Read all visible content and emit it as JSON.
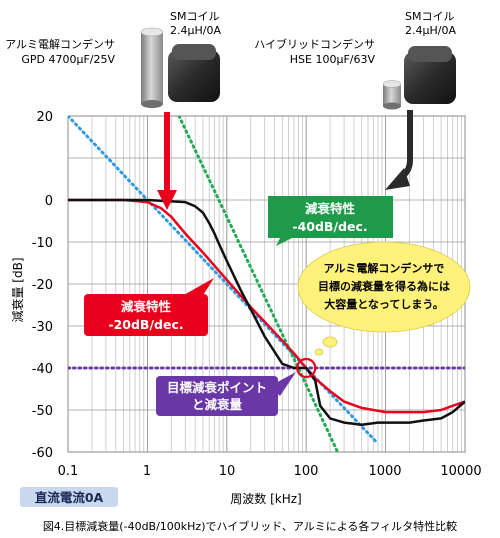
{
  "chart_data": {
    "type": "line",
    "xscale": "log",
    "xlim": [
      0.1,
      10000
    ],
    "ylim": [
      -60,
      20
    ],
    "xticks": [
      "0.1",
      "1",
      "10",
      "100",
      "1000",
      "10000"
    ],
    "yticks": [
      "20",
      "0",
      "-10",
      "-20",
      "-30",
      "-40",
      "-50",
      "-60"
    ],
    "xlabel": "周波数 [kHz]",
    "ylabel": "減衰量 [dB]",
    "grid": true,
    "series": [
      {
        "color": "#e8001c",
        "x": [
          0.1,
          0.5,
          1,
          1.5,
          2,
          3,
          5,
          10,
          20,
          30,
          50,
          70,
          100,
          130,
          200,
          300,
          500,
          700,
          1000,
          1500,
          2000,
          3000,
          5000,
          7000,
          10000
        ],
        "y": [
          0,
          0,
          -0.5,
          -2,
          -4,
          -8,
          -12.5,
          -19,
          -25.5,
          -29,
          -33.5,
          -36.5,
          -40,
          -42.5,
          -45.5,
          -48,
          -49.5,
          -50,
          -50.5,
          -50.5,
          -50.5,
          -50.5,
          -50,
          -49,
          -48
        ]
      },
      {
        "color": "#111111",
        "x": [
          0.1,
          1,
          3,
          4,
          5,
          6,
          7,
          8,
          10,
          15,
          20,
          30,
          50,
          70,
          100,
          130,
          150,
          200,
          300,
          500,
          800,
          1000,
          2000,
          3000,
          5000,
          7000,
          10000
        ],
        "y": [
          0,
          0,
          -0.5,
          -1.5,
          -3,
          -5.5,
          -8,
          -10.5,
          -14.5,
          -21.5,
          -26,
          -32.5,
          -39,
          -40,
          -40,
          -43,
          -49,
          -52,
          -53,
          -53.5,
          -53,
          -53,
          -53,
          -52.5,
          -52,
          -50.5,
          -48
        ]
      },
      {
        "color": "#3399dd",
        "style": "dotted",
        "x": [
          0.1,
          1,
          10,
          100,
          800
        ],
        "y": [
          20,
          0,
          -20,
          -40,
          -58
        ]
      },
      {
        "color": "#22aa55",
        "style": "dotted",
        "x": [
          2.5,
          10,
          100,
          350
        ],
        "y": [
          20,
          -4,
          -44,
          -66
        ]
      },
      {
        "color": "#6a38a6",
        "style": "dotted",
        "x": [
          0.1,
          10000
        ],
        "y": [
          -40,
          -40
        ]
      }
    ],
    "target_point": {
      "x": 100,
      "y": -40
    }
  },
  "components": {
    "left_label_line1": "アルミ電解コンデンサ",
    "left_label_line2": "GPD 4700μF/25V",
    "left_coil_line1": "SMコイル",
    "left_coil_line2": "2.4μH/0A",
    "right_label_line1": "ハイブリッドコンデンサ",
    "right_label_line2": "HSE 100μF/63V",
    "right_coil_line1": "SMコイル",
    "right_coil_line2": "2.4μH/0A"
  },
  "callouts": {
    "green_line1": "減衰特性",
    "green_line2": "-40dB/dec.",
    "red_line1": "減衰特性",
    "red_line2": "-20dB/dec.",
    "purple_line1": "目標減衰ポイント",
    "purple_line2": "と減衰量",
    "bubble_line1": "アルミ電解コンデンサで",
    "bubble_line2": "目標の減衰量を得る為には",
    "bubble_line3": "大容量となってしまう。"
  },
  "badge": "直流電流0A",
  "caption": "図4.目標減衰量(-40dB/100kHz)でハイブリッド、アルミによる各フィルタ特性比較",
  "colors": {
    "red": "#e8001c",
    "green": "#1e9a4a",
    "purple": "#6a38a6",
    "blue": "#3399dd",
    "bubble": "#fff27a",
    "badge": "#c9d8ee"
  }
}
